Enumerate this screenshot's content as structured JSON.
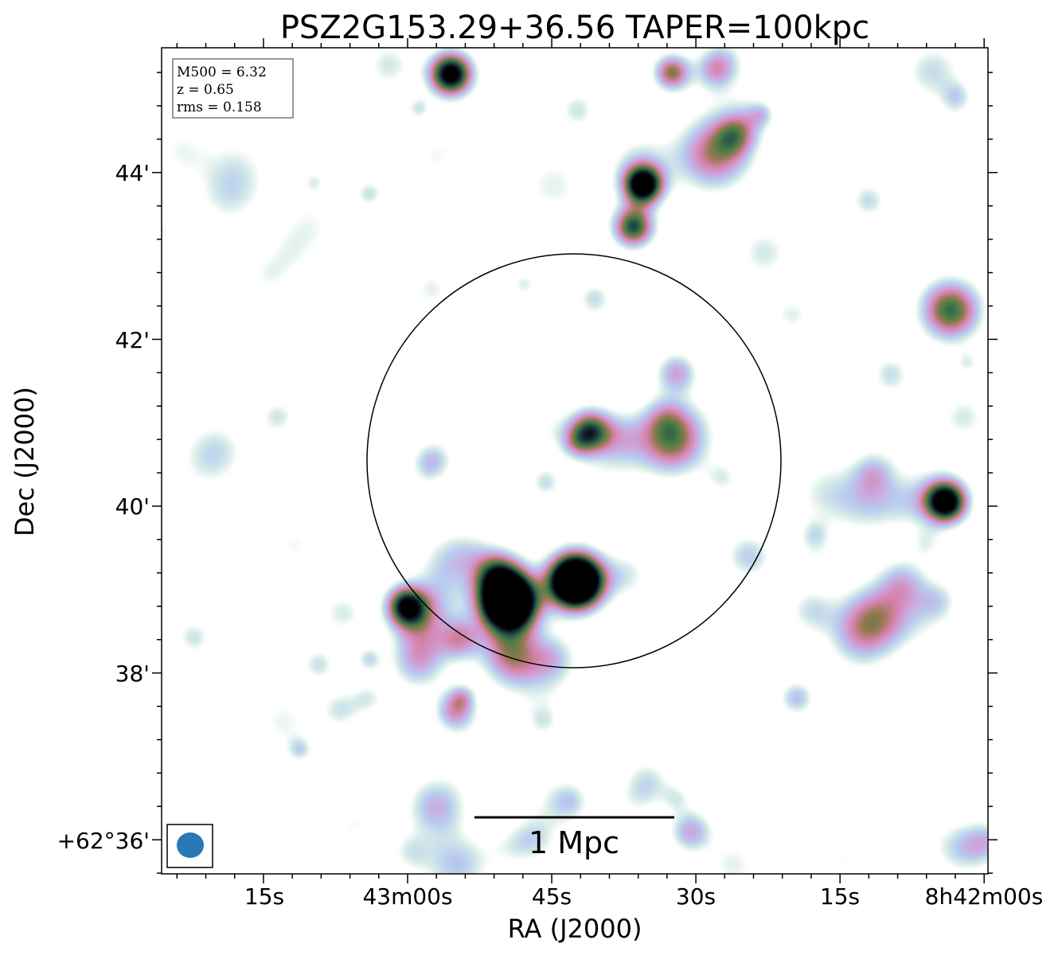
{
  "chart_data": {
    "type": "heatmap",
    "title": "PSZ2G153.29+36.56 TAPER=100kpc",
    "xlabel": "RA (J2000)",
    "ylabel": "Dec (J2000)",
    "x_ticks": [
      "15s",
      "43m00s",
      "45s",
      "30s",
      "15s",
      "8h42m00s"
    ],
    "y_ticks": [
      "44'",
      "42'",
      "40'",
      "38'",
      "+62°36'"
    ],
    "info_box": [
      "M500 = 6.32",
      "z = 0.65",
      "rms = 0.158"
    ],
    "scale_bar_label": "1 Mpc",
    "colormap": "cubehelix_r",
    "colors": {
      "beam": "#2a78b5",
      "circle": "#000000"
    },
    "sources": [
      {
        "id": "double-left",
        "ra_s": 17.5,
        "dec_arcmin": 39.1,
        "peak": 6.0,
        "sigma": 0.22
      },
      {
        "id": "double-right",
        "ra_s": 10.5,
        "dec_arcmin": 38.85,
        "peak": 6.0,
        "sigma": 0.23
      },
      {
        "id": "small-right",
        "ra_s": 0.0,
        "dec_arcmin": 38.78,
        "peak": 2.6,
        "sigma": 0.17
      },
      {
        "id": "top-left",
        "ra_s": 4.5,
        "dec_arcmin": 45.18,
        "peak": 3.5,
        "sigma": 0.18
      },
      {
        "id": "top-right",
        "ra_s": 27.5,
        "dec_arcmin": 45.2,
        "peak": 2.0,
        "sigma": 0.15
      },
      {
        "id": "right-upper",
        "ra_s": 24.5,
        "dec_arcmin": 43.85,
        "peak": 3.5,
        "sigma": 0.16
      },
      {
        "id": "right-lower",
        "ra_s": 23.5,
        "dec_arcmin": 43.35,
        "peak": 2.6,
        "sigma": 0.17
      },
      {
        "id": "center-left",
        "ra_s": 56.5,
        "dec_arcmin": 42.35,
        "peak": 2.4,
        "sigma": 0.25
      },
      {
        "id": "left-mid",
        "ra_s": 19.0,
        "dec_arcmin": 40.9,
        "peak": 2.4,
        "sigma": 0.18
      },
      {
        "id": "inside-circle",
        "ra_s": 56.0,
        "dec_arcmin": 40.05,
        "peak": 3.5,
        "sigma": 0.17
      },
      {
        "id": "circle-right",
        "ra_s": 28.0,
        "dec_arcmin": 40.85,
        "peak": 1.4,
        "sigma": 0.3
      },
      {
        "id": "left-upper",
        "ra_s": 28.0,
        "dec_arcmin": 41.6,
        "peak": 1.3,
        "sigma": 0.17
      },
      {
        "id": "top-far-left",
        "ra_s": 34.0,
        "dec_arcmin": 44.45,
        "peak": 1.2,
        "sigma": 0.17
      },
      {
        "id": "bottom-left",
        "ra_s": 5.0,
        "dec_arcmin": 37.55,
        "peak": 1.5,
        "sigma": 0.17
      },
      {
        "id": "right-cluster-a",
        "ra_s": 11.0,
        "dec_arcmin": 38.2,
        "peak": 1.4,
        "sigma": 0.25
      },
      {
        "id": "right-cluster-b",
        "ra_s": 5.5,
        "dec_arcmin": 38.4,
        "peak": 1.3,
        "sigma": 0.17
      },
      {
        "id": "right-mid",
        "ra_s": 9.0,
        "dec_arcmin": 39.2,
        "peak": 1.5,
        "sigma": 0.2
      },
      {
        "id": "bottom-right",
        "ra_s": 3.0,
        "dec_arcmin": 36.4,
        "peak": 1.2,
        "sigma": 0.25
      },
      {
        "id": "bottom-center",
        "ra_s": 29.5,
        "dec_arcmin": 36.1,
        "peak": 1.3,
        "sigma": 0.18
      },
      {
        "id": "center-a",
        "ra_s": 48.5,
        "dec_arcmin": 40.4,
        "peak": 0.9,
        "sigma": 0.18
      },
      {
        "id": "center-b",
        "ra_s": 35.5,
        "dec_arcmin": 39.4,
        "peak": 1.0,
        "sigma": 0.2
      },
      {
        "id": "center-c",
        "ra_s": 42.0,
        "dec_arcmin": 38.75,
        "peak": 0.8,
        "sigma": 0.2
      },
      {
        "id": "center-d",
        "ra_s": 40.5,
        "dec_arcmin": 37.7,
        "peak": 1.1,
        "sigma": 0.15
      },
      {
        "id": "lower-left-a",
        "ra_s": 51.5,
        "dec_arcmin": 39.1,
        "peak": 0.9,
        "sigma": 0.2
      },
      {
        "id": "low-left-b",
        "ra_s": 25.0,
        "dec_arcmin": 36.7,
        "peak": 0.8,
        "sigma": 0.2
      },
      {
        "id": "low-left-c",
        "ra_s": 13.0,
        "dec_arcmin": 36.0,
        "peak": 0.8,
        "sigma": 0.2
      },
      {
        "id": "circle-top",
        "ra_s": 40.0,
        "dec_arcmin": 42.3,
        "peak": 0.7,
        "sigma": 0.18
      }
    ]
  }
}
